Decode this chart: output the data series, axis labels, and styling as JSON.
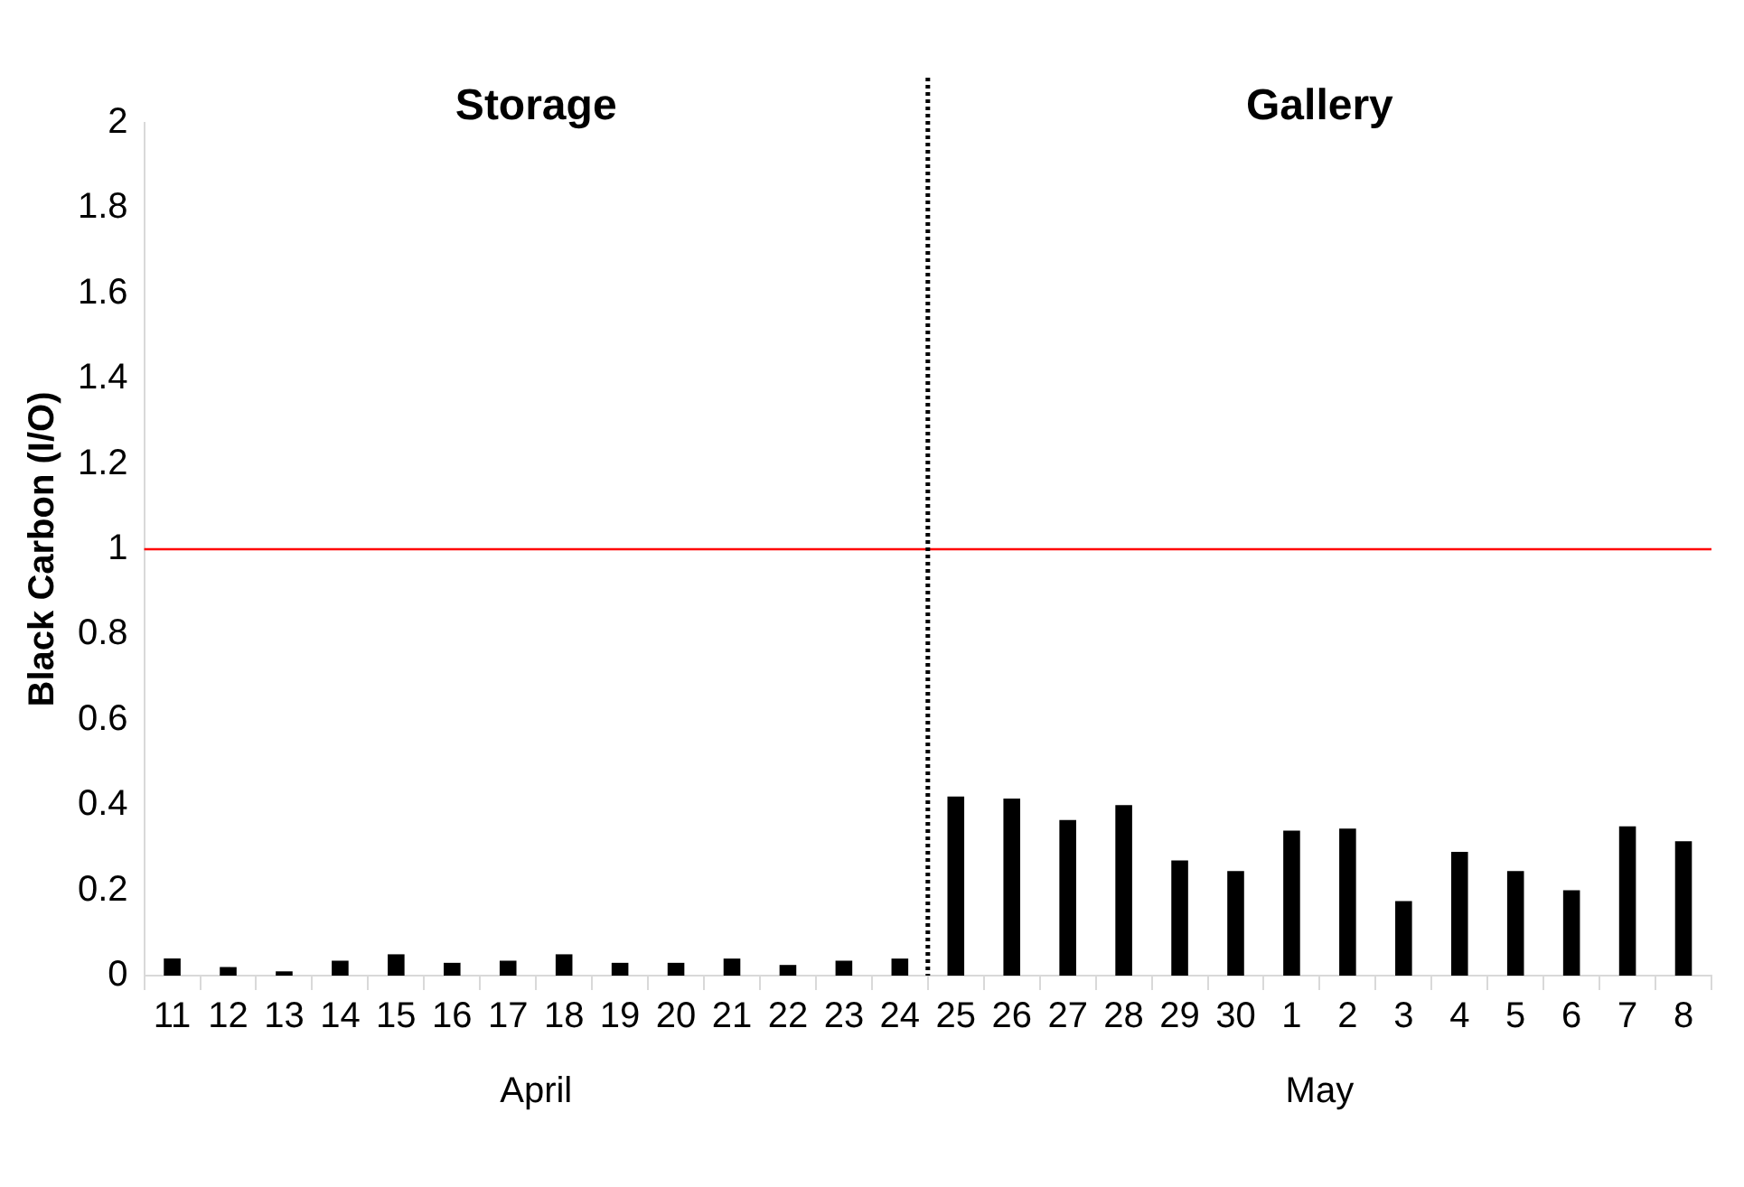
{
  "chart_data": {
    "type": "bar",
    "ylabel": "Black Carbon (I/O)",
    "categories": [
      "11",
      "12",
      "13",
      "14",
      "15",
      "16",
      "17",
      "18",
      "19",
      "20",
      "21",
      "22",
      "23",
      "24",
      "25",
      "26",
      "27",
      "28",
      "29",
      "30",
      "1",
      "2",
      "3",
      "4",
      "5",
      "6",
      "7",
      "8"
    ],
    "values": [
      0.04,
      0.02,
      0.01,
      0.035,
      0.05,
      0.03,
      0.035,
      0.05,
      0.03,
      0.03,
      0.04,
      0.025,
      0.035,
      0.04,
      0.42,
      0.415,
      0.365,
      0.4,
      0.27,
      0.245,
      0.34,
      0.345,
      0.175,
      0.29,
      0.245,
      0.2,
      0.35,
      0.315
    ],
    "color": "#000000",
    "ylim": [
      0,
      2
    ],
    "yticks": [
      0,
      0.2,
      0.4,
      0.6,
      0.8,
      1,
      1.2,
      1.4,
      1.6,
      1.8,
      2
    ],
    "grid": false,
    "legend": false,
    "ref_lines": [
      {
        "axis": "y",
        "value": 1,
        "color": "#ff0000",
        "line_style": "solid"
      },
      {
        "axis": "x",
        "value": "25",
        "color": "#000000",
        "line_style": "dotted"
      }
    ],
    "annotations": [
      "Storage",
      "Gallery",
      "April",
      "May"
    ]
  }
}
